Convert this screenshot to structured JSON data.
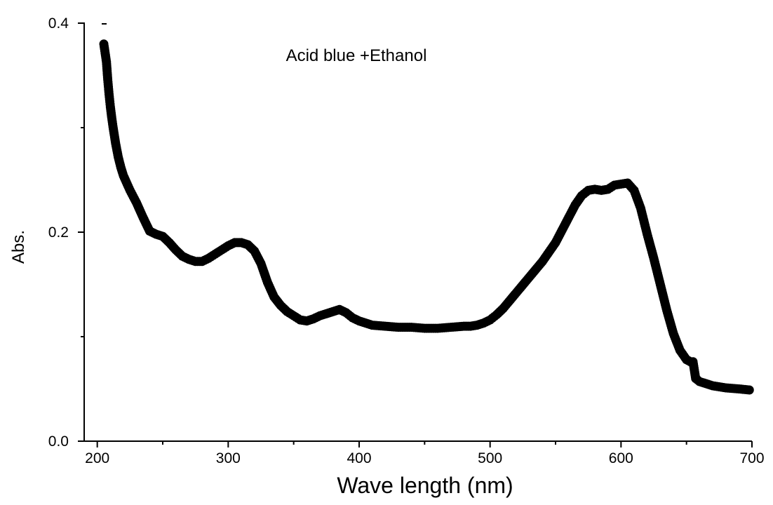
{
  "chart_data": {
    "type": "scatter",
    "title": "",
    "annotation": "Acid blue +Ethanol",
    "xlabel": "Wave length (nm)",
    "ylabel": "Abs.",
    "xlim": [
      190,
      700
    ],
    "ylim": [
      0.0,
      0.4
    ],
    "x_ticks": [
      200,
      300,
      400,
      500,
      600,
      700
    ],
    "x_tick_labels": [
      "200",
      "300",
      "400",
      "500",
      "600",
      "700"
    ],
    "y_ticks": [
      0.0,
      0.2,
      0.4
    ],
    "y_tick_labels": [
      "0.0",
      "0.2",
      "0.4"
    ],
    "grid": false,
    "legend": "none",
    "marker_color": "#000000",
    "series": [
      {
        "x": [
          205,
          207,
          208,
          209,
          210,
          211,
          212,
          214,
          216,
          218,
          220,
          225,
          230,
          235,
          240,
          245,
          250,
          255,
          260,
          265,
          270,
          275,
          280,
          285,
          290,
          295,
          300,
          305,
          310,
          315,
          320,
          325,
          330,
          335,
          340,
          345,
          350,
          355,
          360,
          365,
          370,
          375,
          380,
          385,
          390,
          395,
          400,
          405,
          410,
          420,
          430,
          440,
          450,
          460,
          470,
          480,
          485,
          490,
          495,
          500,
          505,
          510,
          520,
          530,
          540,
          550,
          555,
          560,
          565,
          570,
          575,
          580,
          585,
          590,
          595,
          600,
          605,
          610,
          615,
          620,
          625,
          630,
          635,
          640,
          645,
          650,
          653,
          655,
          657,
          660,
          670,
          680,
          690,
          698
        ],
        "y": [
          0.38,
          0.363,
          0.346,
          0.332,
          0.32,
          0.31,
          0.301,
          0.285,
          0.272,
          0.262,
          0.254,
          0.24,
          0.228,
          0.214,
          0.201,
          0.198,
          0.196,
          0.19,
          0.183,
          0.177,
          0.174,
          0.172,
          0.172,
          0.175,
          0.179,
          0.183,
          0.187,
          0.19,
          0.19,
          0.188,
          0.182,
          0.17,
          0.152,
          0.138,
          0.13,
          0.124,
          0.12,
          0.116,
          0.115,
          0.117,
          0.12,
          0.122,
          0.124,
          0.126,
          0.123,
          0.118,
          0.115,
          0.113,
          0.111,
          0.11,
          0.109,
          0.109,
          0.108,
          0.108,
          0.109,
          0.11,
          0.11,
          0.111,
          0.113,
          0.116,
          0.121,
          0.127,
          0.142,
          0.157,
          0.172,
          0.19,
          0.202,
          0.214,
          0.226,
          0.235,
          0.24,
          0.241,
          0.24,
          0.241,
          0.245,
          0.246,
          0.247,
          0.24,
          0.223,
          0.198,
          0.175,
          0.15,
          0.125,
          0.103,
          0.087,
          0.078,
          0.076,
          0.076,
          0.06,
          0.057,
          0.053,
          0.051,
          0.05,
          0.049
        ]
      }
    ]
  }
}
